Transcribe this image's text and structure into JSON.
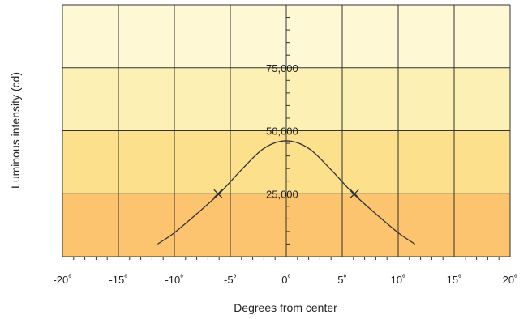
{
  "chart_data": {
    "type": "line",
    "title": "",
    "xlabel": "Degrees from center",
    "ylabel": "Luminous intensity (cd)",
    "xlim": [
      -20,
      20
    ],
    "ylim": [
      0,
      100000
    ],
    "grid": true,
    "x_ticks": [
      -20,
      -15,
      -10,
      -5,
      0,
      5,
      10,
      15,
      20
    ],
    "x_tick_labels": [
      "-20˚",
      "-15˚",
      "-10˚",
      "-5˚",
      "0˚",
      "5˚",
      "10˚",
      "15˚",
      "20˚"
    ],
    "y_tick_labels": [
      {
        "value": 25000,
        "label": "25,000"
      },
      {
        "value": 50000,
        "label": "50,000"
      },
      {
        "value": 75000,
        "label": "75,000"
      }
    ],
    "bands": [
      {
        "from": 0,
        "to": 25000,
        "color": "#fcc46e"
      },
      {
        "from": 25000,
        "to": 50000,
        "color": "#fde08c"
      },
      {
        "from": 50000,
        "to": 75000,
        "color": "#fdf0b4"
      },
      {
        "from": 75000,
        "to": 100000,
        "color": "#fef8d4"
      }
    ],
    "series": [
      {
        "color": "#333333",
        "x": [
          -11.5,
          -10,
          -8,
          -6,
          -4,
          -2,
          0,
          2,
          4,
          6,
          8,
          10,
          11.5
        ],
        "y": [
          5000,
          9500,
          17000,
          25000,
          34500,
          43000,
          46000,
          43000,
          34500,
          25000,
          17000,
          9500,
          5000
        ]
      }
    ],
    "markers": [
      {
        "x": -6.1,
        "y": 25000
      },
      {
        "x": 6.1,
        "y": 25000
      }
    ]
  }
}
